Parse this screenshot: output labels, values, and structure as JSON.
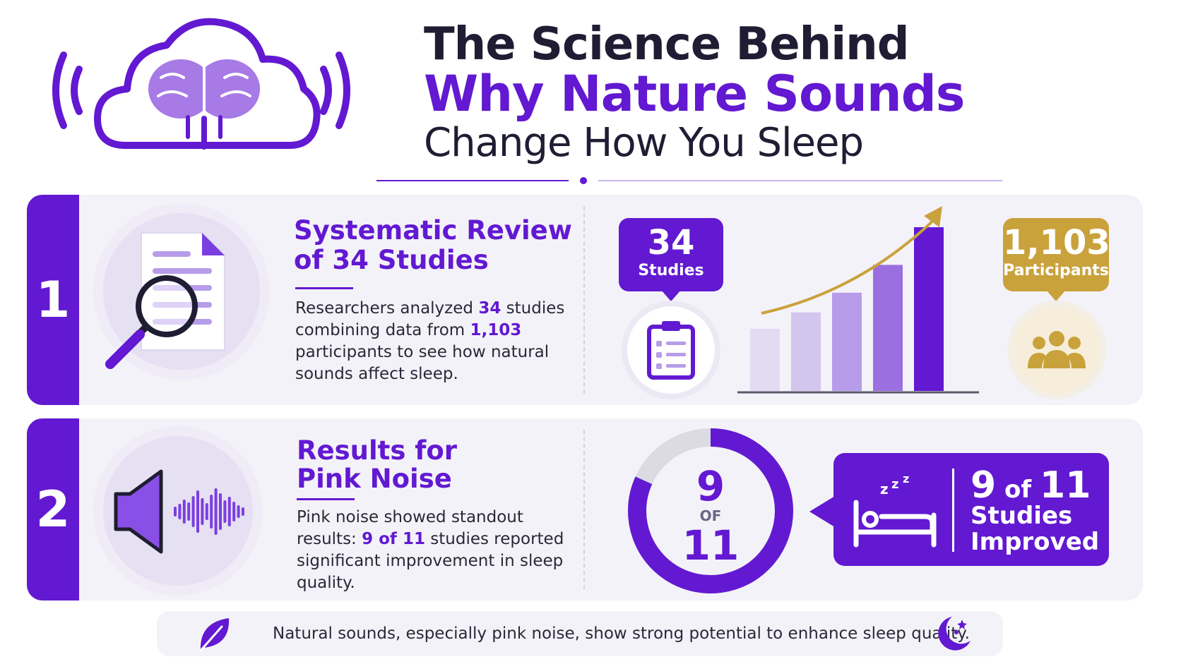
{
  "title": {
    "line1": "The Science Behind",
    "line2": "Why Nature Sounds",
    "line3": "Change How You Sleep"
  },
  "sections": [
    {
      "number": "1",
      "heading_line1": "Systematic Review",
      "heading_line2": "of 34 Studies",
      "body_before_1": "Researchers analyzed ",
      "body_hl_1": "34",
      "body_mid": " studies combining data from ",
      "body_hl_2": "1,103",
      "body_after": " participants to see how natural sounds affect sleep.",
      "studies_value": "34",
      "studies_label": "Studies",
      "participants_value": "1,103",
      "participants_label": "Participants"
    },
    {
      "number": "2",
      "heading_line1": "Results for",
      "heading_line2": "Pink Noise",
      "body_before": "Pink noise showed standout results: ",
      "body_hl": "9 of 11",
      "body_after": " studies reported significant improvement in sleep quality.",
      "donut_top": "9",
      "donut_of": "OF",
      "donut_bottom": "11",
      "callout_num": "9",
      "callout_of": " of ",
      "callout_total": "11",
      "callout_line2": "Studies",
      "callout_line3": "Improved"
    }
  ],
  "chart_data": {
    "type": "bar",
    "bar_levels": [
      0.38,
      0.48,
      0.6,
      0.77,
      1.0
    ],
    "colors": [
      "#e2dbf1",
      "#d2c6ee",
      "#b79cea",
      "#9c6fe0",
      "#6219d1"
    ],
    "trend_color": "#c9a23b"
  },
  "donut_fraction": 0.818,
  "footer": {
    "text": "Natural sounds, especially pink noise, show strong potential to enhance sleep quality."
  },
  "colors": {
    "primary": "#6219d1",
    "gold": "#c9a23b",
    "dark": "#1f1d33",
    "panel": "#f4f2f9"
  },
  "icons": [
    "brain-cloud-icon",
    "sound-wave-icon",
    "document-search-icon",
    "clipboard-icon",
    "people-icon",
    "speaker-icon",
    "sleeping-bed-icon",
    "leaf-icon",
    "moon-stars-icon"
  ]
}
